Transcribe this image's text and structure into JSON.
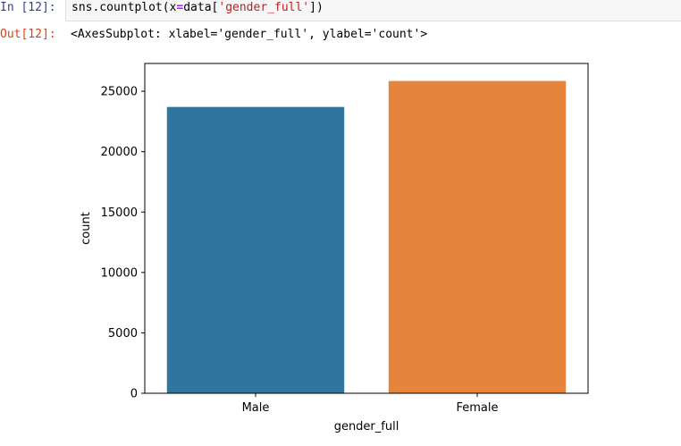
{
  "cell": {
    "in_prompt": "In [12]:",
    "out_prompt": "Out[12]:",
    "code": {
      "fn": "sns.countplot(x",
      "eq": "=",
      "arg_pre": "data[",
      "arg_str": "'gender_full'",
      "arg_post": "])"
    },
    "output_text": "<AxesSubplot: xlabel='gender_full', ylabel='count'>"
  },
  "colors": {
    "in_prompt": "#303f9f",
    "out_prompt": "#d84315"
  },
  "chart_data": {
    "type": "bar",
    "categories": [
      "Male",
      "Female"
    ],
    "values": [
      23700,
      25850
    ],
    "colors": [
      "#2e76a0",
      "#e6843c"
    ],
    "xlabel": "gender_full",
    "ylabel": "count",
    "ylim": [
      0,
      27300
    ],
    "yticks": [
      0,
      5000,
      10000,
      15000,
      20000,
      25000
    ],
    "ytick_labels": [
      "0",
      "5000",
      "10000",
      "15000",
      "20000",
      "25000"
    ],
    "grid": false
  }
}
